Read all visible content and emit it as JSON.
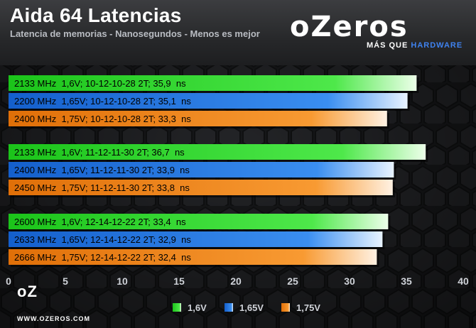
{
  "header": {
    "title": "Aida 64 Latencias",
    "subtitle": "Latencia de memorias - Nanosegundos - Menos es mejor"
  },
  "logo": {
    "wordmark": "oZeros",
    "tagline_pre": "MÁS QUE",
    "tagline_post": "HARDWARE",
    "bottom_wordmark": "oZ",
    "url": "WWW.OZEROS.COM"
  },
  "colors": {
    "1.6V": "#22d01e",
    "1.65V": "#1e74dc",
    "1.75V": "#f08012"
  },
  "chart_data": {
    "type": "bar",
    "orientation": "horizontal",
    "title": "Aida 64 Latencias",
    "subtitle": "Latencia de memorias - Nanosegundos - Menos es mejor",
    "xlim": [
      0,
      40
    ],
    "xticks": [
      "0",
      "5",
      "10",
      "15",
      "20",
      "25",
      "30",
      "35",
      "40"
    ],
    "legend_position": "bottom",
    "series_names": [
      "1,6V",
      "1,65V",
      "1,75V"
    ],
    "groups": [
      {
        "bars": [
          {
            "label": "2133 MHz  1,6V; 10-12-10-28 2T; 35,9  ns",
            "value": 35.9,
            "series": "1,6V"
          },
          {
            "label": "2200 MHz  1,65V; 10-12-10-28 2T; 35,1  ns",
            "value": 35.1,
            "series": "1,65V"
          },
          {
            "label": "2400 MHz  1,75V; 10-12-10-28 2T; 33,3  ns",
            "value": 33.3,
            "series": "1,75V"
          }
        ]
      },
      {
        "bars": [
          {
            "label": "2133 MHz  1,6V; 11-12-11-30 2T; 36,7  ns",
            "value": 36.7,
            "series": "1,6V"
          },
          {
            "label": "2400 MHz  1,65V; 11-12-11-30 2T; 33,9  ns",
            "value": 33.9,
            "series": "1,65V"
          },
          {
            "label": "2450 MHz  1,75V; 11-12-11-30 2T; 33,8  ns",
            "value": 33.8,
            "series": "1,75V"
          }
        ]
      },
      {
        "bars": [
          {
            "label": "2600 MHz  1,6V; 12-14-12-22 2T; 33,4  ns",
            "value": 33.4,
            "series": "1,6V"
          },
          {
            "label": "2633 MHz  1,65V; 12-14-12-22 2T; 32,9  ns",
            "value": 32.9,
            "series": "1,65V"
          },
          {
            "label": "2666 MHz  1,75V; 12-14-12-22 2T; 32,4  ns",
            "value": 32.4,
            "series": "1,75V"
          }
        ]
      }
    ]
  }
}
